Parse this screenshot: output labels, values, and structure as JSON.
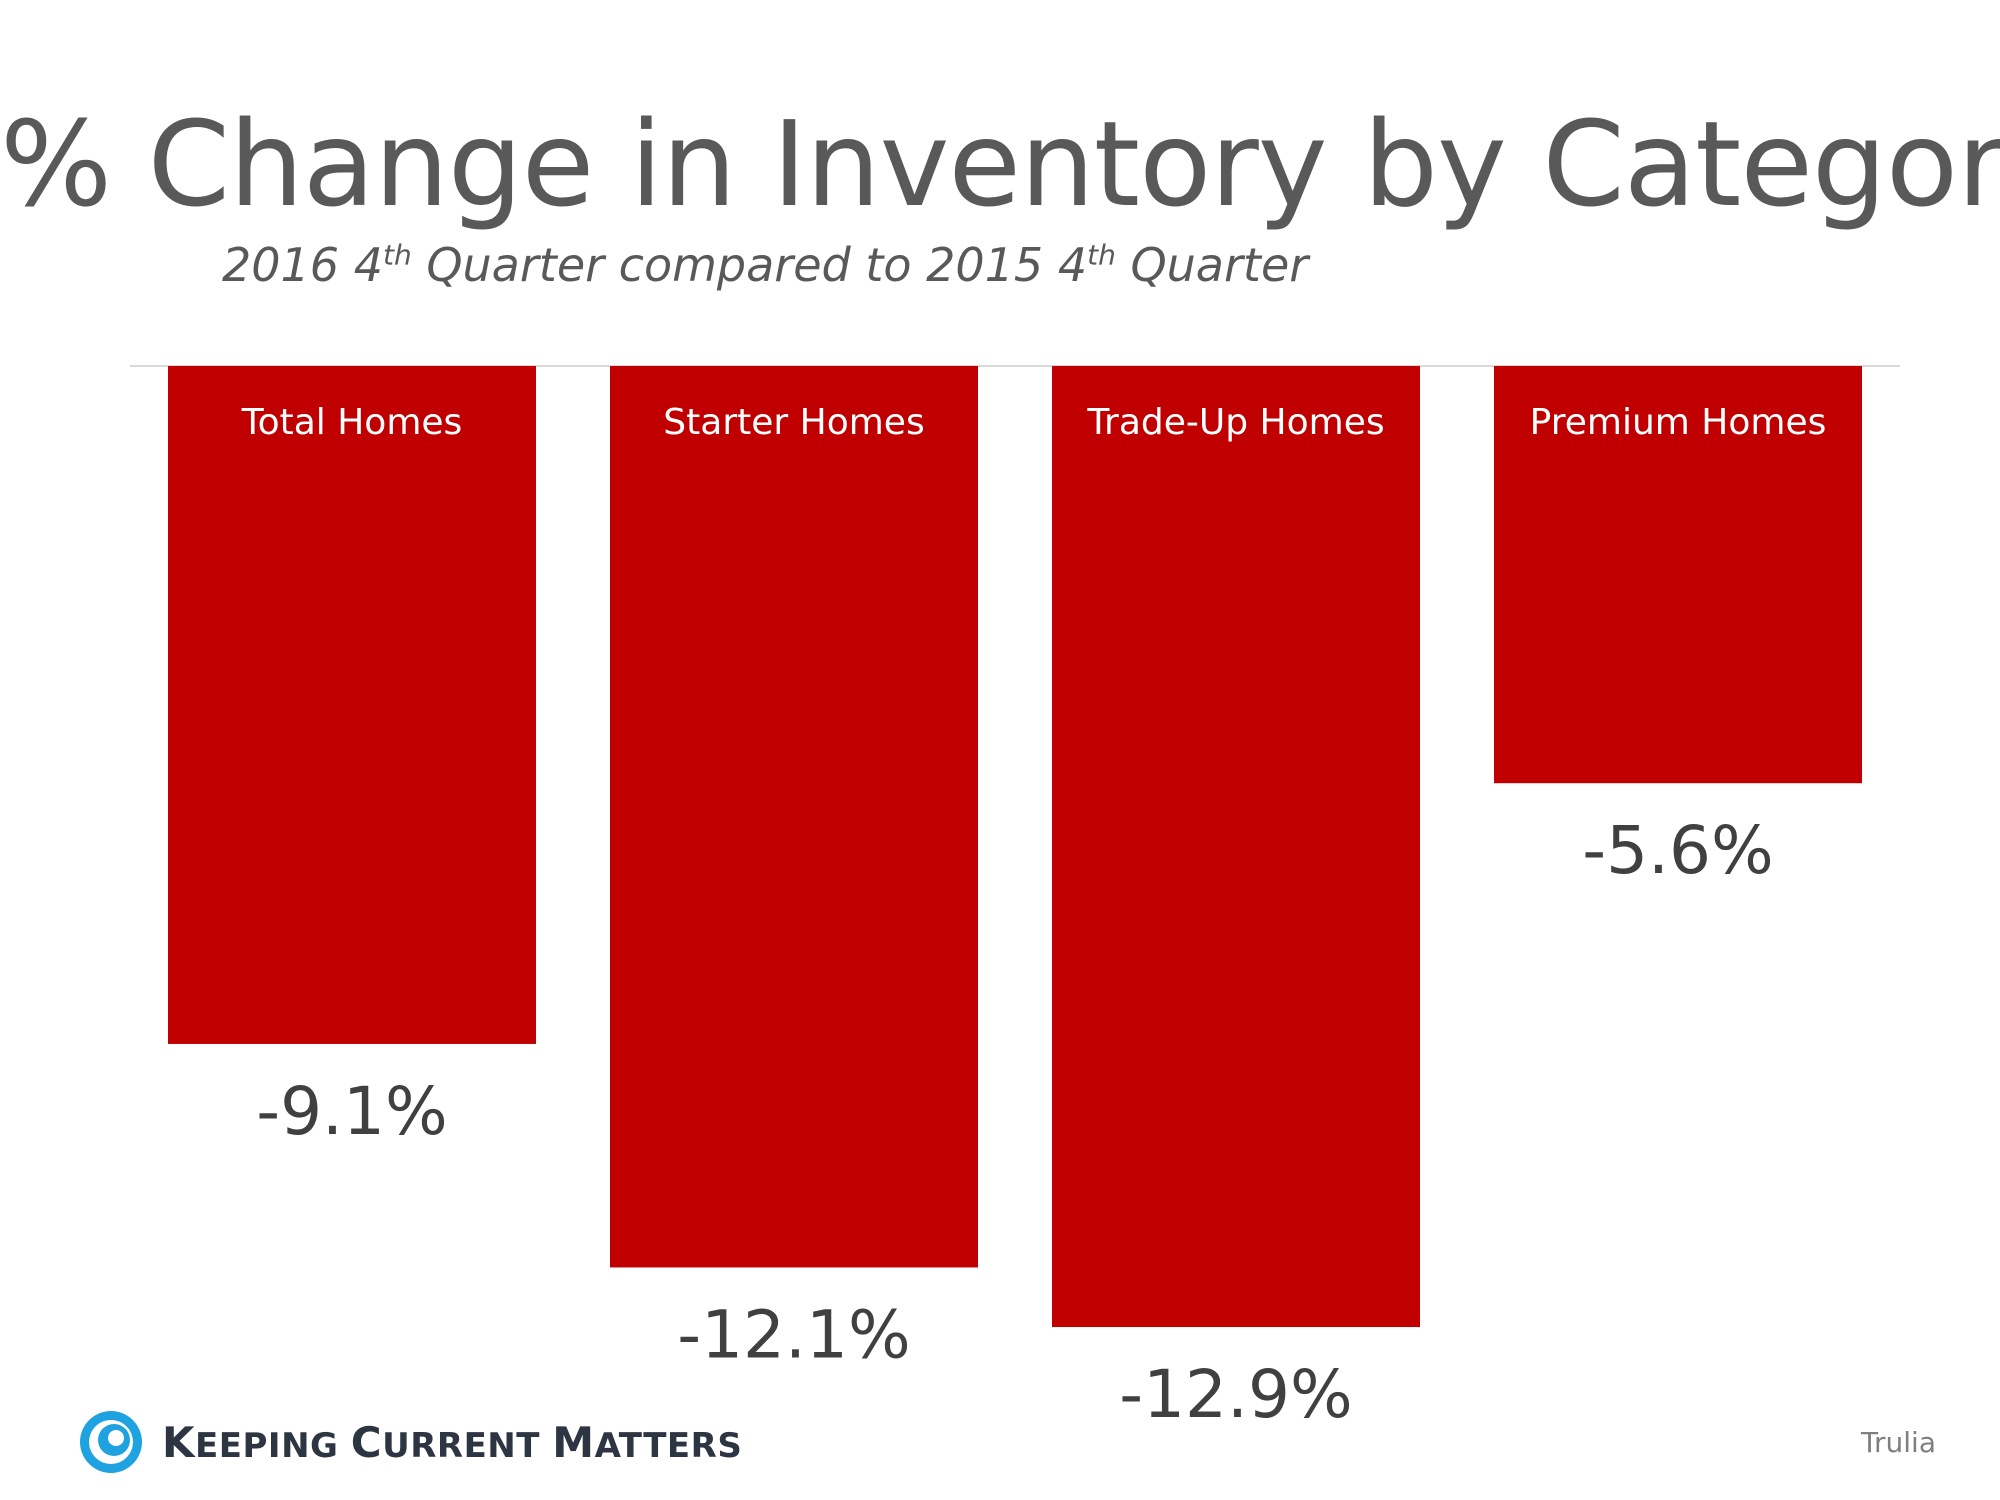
{
  "chart_data": {
    "type": "bar",
    "title": "% Change in Inventory by Category",
    "subtitle": {
      "part1": "2016 4",
      "sup1": "th",
      "part2": " Quarter compared to 2015 4",
      "sup2": "th",
      "part3": " Quarter"
    },
    "categories": [
      "Total Homes",
      "Starter Homes",
      "Trade-Up Homes",
      "Premium Homes"
    ],
    "values": [
      -9.1,
      -12.1,
      -12.9,
      -5.6
    ],
    "value_labels": [
      "-9.1%",
      "-12.1%",
      "-12.9%",
      "-5.6%"
    ],
    "ylim": [
      -14,
      0
    ],
    "bar_color": "#c00000",
    "grid": false,
    "legend": "none"
  },
  "branding": {
    "logo_text_parts": [
      {
        "cap": "K",
        "rest": "EEPING "
      },
      {
        "cap": "C",
        "rest": "URRENT "
      },
      {
        "cap": "M",
        "rest": "ATTERS"
      }
    ],
    "logo_color": "#1fa3e0",
    "source": "Trulia"
  }
}
